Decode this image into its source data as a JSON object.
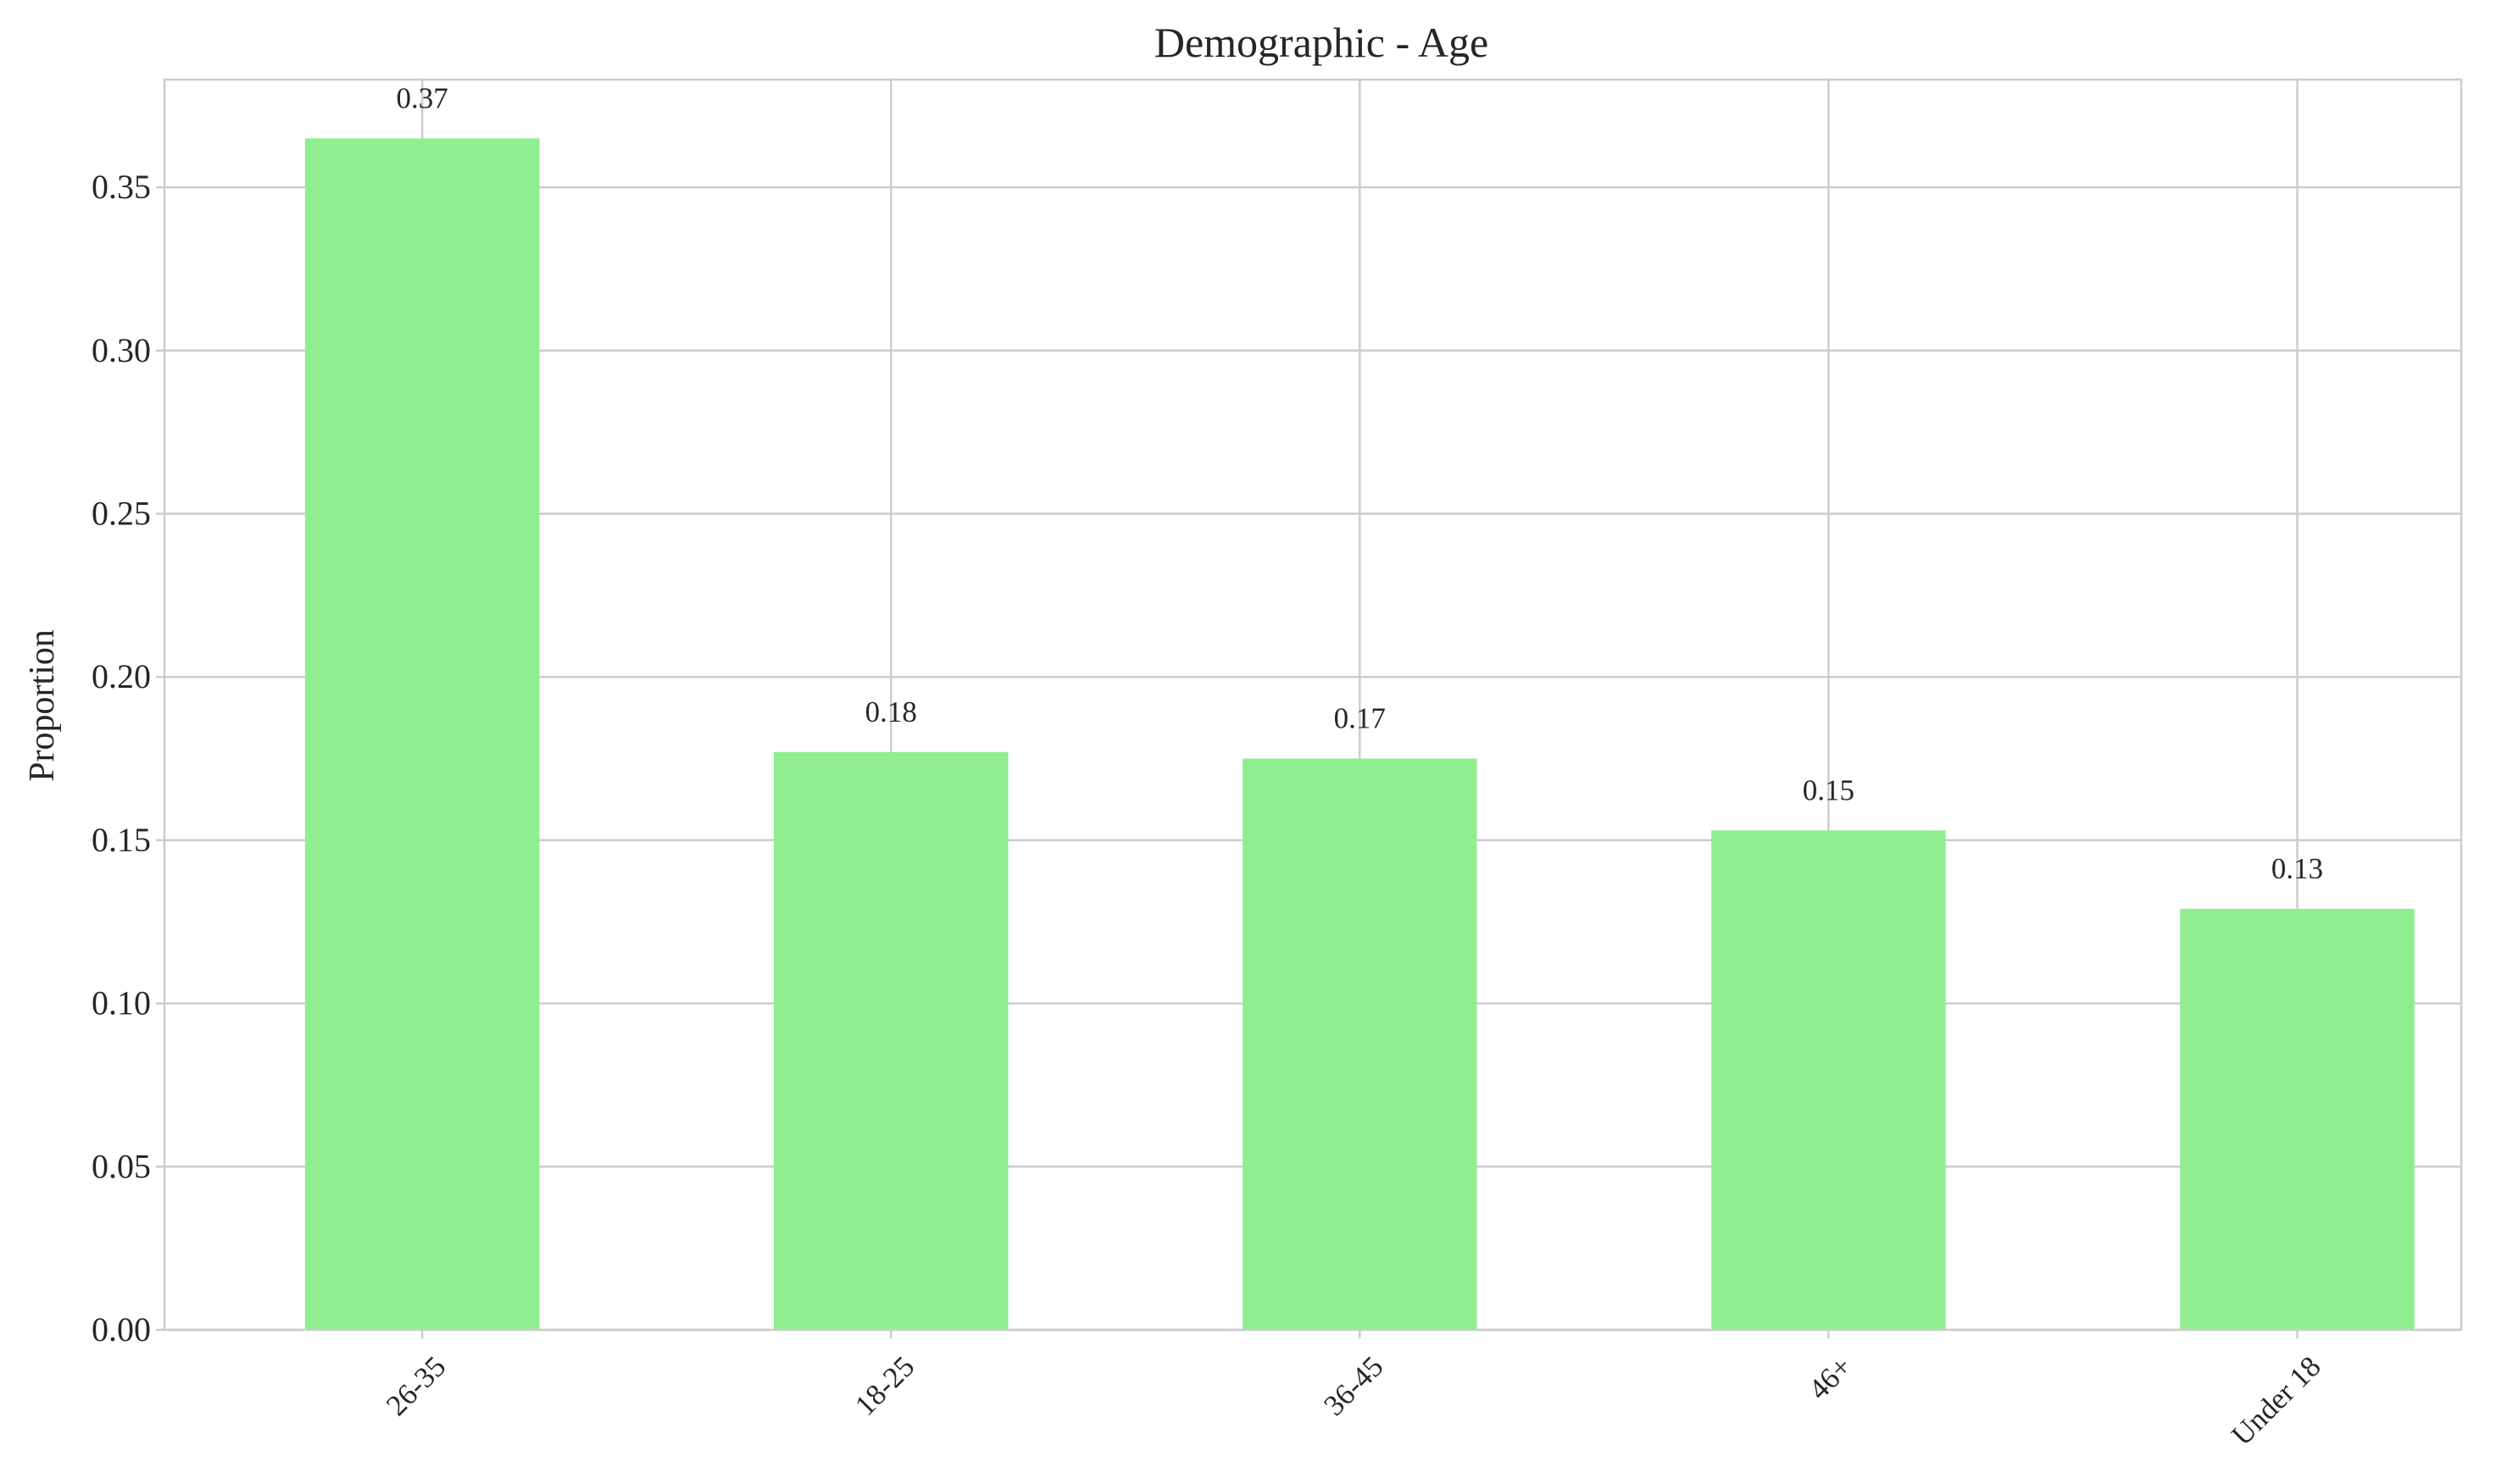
{
  "chart_data": {
    "type": "bar",
    "title": "Demographic - Age",
    "xlabel": "",
    "ylabel": "Proportion",
    "categories": [
      "26-35",
      "18-25",
      "36-45",
      "46+",
      "Under 18"
    ],
    "values": [
      0.365,
      0.177,
      0.175,
      0.153,
      0.129
    ],
    "data_labels": [
      "0.37",
      "0.18",
      "0.17",
      "0.15",
      "0.13"
    ],
    "ylim": [
      0,
      0.383
    ],
    "yticks": [
      0.0,
      0.05,
      0.1,
      0.15,
      0.2,
      0.25,
      0.3,
      0.35
    ],
    "ytick_labels": [
      "0.00",
      "0.05",
      "0.10",
      "0.15",
      "0.20",
      "0.25",
      "0.30",
      "0.35"
    ],
    "grid": true,
    "bar_color": "#90ee90",
    "grid_color": "#cccccc"
  }
}
